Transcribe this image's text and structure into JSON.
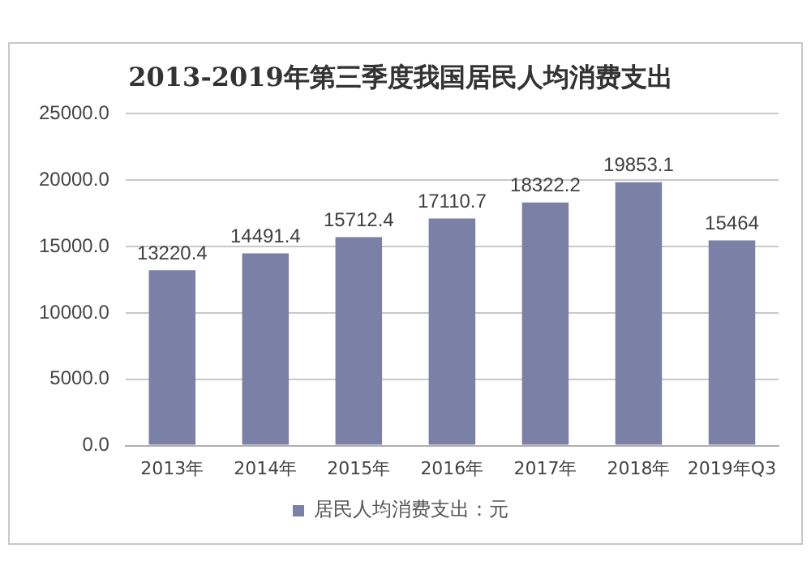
{
  "chart_data": {
    "type": "bar",
    "title": "2013-2019年第三季度我国居民人均消费支出",
    "categories": [
      "2013年",
      "2014年",
      "2015年",
      "2016年",
      "2017年",
      "2018年",
      "2019年Q3"
    ],
    "series": [
      {
        "name": "居民人均消费支出：元",
        "color": "#7b80a6",
        "values": [
          13220.4,
          14491.4,
          15712.4,
          17110.7,
          18322.2,
          19853.1,
          15464
        ]
      }
    ],
    "ylim": [
      0,
      25000
    ],
    "yticks": [
      {
        "value": 0,
        "label": "0.0"
      },
      {
        "value": 5000,
        "label": "5000.0"
      },
      {
        "value": 10000,
        "label": "10000.0"
      },
      {
        "value": 15000,
        "label": "15000.0"
      },
      {
        "value": 20000,
        "label": "20000.0"
      },
      {
        "value": 25000,
        "label": "25000.0"
      }
    ],
    "grid": "y",
    "legend": "bottom",
    "data_labels": true
  }
}
